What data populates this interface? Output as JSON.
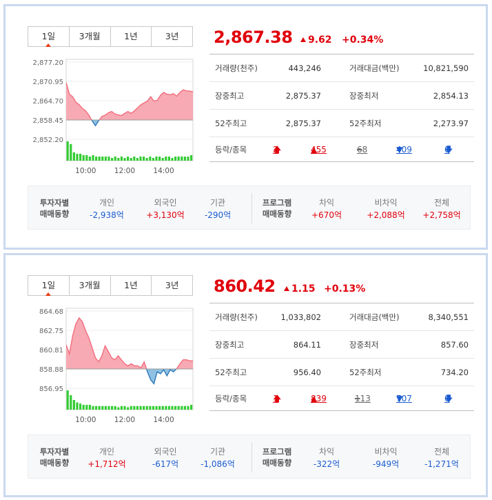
{
  "panels": [
    {
      "tabs": [
        "1일",
        "3개월",
        "1년",
        "3년"
      ],
      "active_tab": 0,
      "price": "2,867.38",
      "change": "9.62",
      "change_pct": "+0.34%",
      "stats": {
        "volume_label": "거래량(천주)",
        "volume": "443,246",
        "amount_label": "거래대금(백만)",
        "amount": "10,821,590",
        "day_high_label": "장중최고",
        "day_high": "2,875.37",
        "day_low_label": "장중최저",
        "day_low": "2,854.13",
        "w52_high_label": "52주최고",
        "w52_high": "2,875.37",
        "w52_low_label": "52주최저",
        "w52_low": "2,273.97"
      },
      "updown": {
        "label": "등락/종목",
        "upper_limit": "2",
        "rise": "455",
        "flat": "68",
        "fall": "409",
        "lower_limit": "0"
      },
      "investor": {
        "title_line1": "투자자별",
        "title_line2": "매매동향",
        "items": [
          {
            "name": "개인",
            "value": "-2,938억",
            "sign": "neg"
          },
          {
            "name": "외국인",
            "value": "+3,130억",
            "sign": "pos"
          },
          {
            "name": "기관",
            "value": "-290억",
            "sign": "neg"
          }
        ]
      },
      "program": {
        "title_line1": "프로그램",
        "title_line2": "매매동향",
        "items": [
          {
            "name": "차익",
            "value": "+670억",
            "sign": "pos"
          },
          {
            "name": "비차익",
            "value": "+2,088억",
            "sign": "pos"
          },
          {
            "name": "전체",
            "value": "+2,758억",
            "sign": "pos"
          }
        ]
      },
      "chart_data": {
        "type": "area",
        "y_ticks": [
          "2,877.20",
          "2,870.95",
          "2,864.70",
          "2,858.45",
          "2,852.20"
        ],
        "x_ticks": [
          "10:00",
          "12:00",
          "14:00"
        ],
        "ylim": [
          2852.2,
          2877.2
        ],
        "baseline": 2858.45,
        "x": [
          0,
          10,
          20,
          30,
          40,
          50,
          60,
          70,
          80,
          90,
          100,
          110,
          120,
          130,
          140,
          150,
          160,
          170,
          180,
          190,
          200,
          210,
          220,
          230,
          240,
          250,
          260,
          270,
          280,
          290,
          300,
          310,
          320,
          330,
          340,
          350,
          360,
          370,
          380,
          390
        ],
        "values": [
          2870.6,
          2866.8,
          2866.0,
          2864.2,
          2863.4,
          2862.2,
          2861.4,
          2860.0,
          2858.2,
          2856.6,
          2858.2,
          2859.6,
          2860.0,
          2860.8,
          2861.2,
          2860.4,
          2860.1,
          2859.9,
          2860.6,
          2861.2,
          2860.6,
          2861.4,
          2862.4,
          2863.4,
          2864.0,
          2864.6,
          2866.0,
          2864.6,
          2864.8,
          2866.4,
          2867.4,
          2866.8,
          2866.6,
          2867.0,
          2866.2,
          2867.4,
          2868.2,
          2867.9,
          2867.8,
          2867.6
        ],
        "volume": [
          14,
          12,
          6,
          5,
          5,
          4,
          4,
          3,
          4,
          3,
          3,
          3,
          3,
          3,
          2,
          3,
          2,
          3,
          2,
          3,
          2,
          3,
          2,
          3,
          3,
          2,
          3,
          2,
          3,
          3,
          2,
          3,
          3,
          2,
          3,
          3,
          3,
          3,
          3,
          4
        ],
        "colors": {
          "above": "#f26d7d",
          "above_fill": "#f7aab3",
          "below": "#2e78b8",
          "below_fill": "#8ec1e3",
          "volume": "#33cc33"
        }
      }
    },
    {
      "tabs": [
        "1일",
        "3개월",
        "1년",
        "3년"
      ],
      "active_tab": 0,
      "price": "860.42",
      "change": "1.15",
      "change_pct": "+0.13%",
      "stats": {
        "volume_label": "거래량(천주)",
        "volume": "1,033,802",
        "amount_label": "거래대금(백만)",
        "amount": "8,340,551",
        "day_high_label": "장중최고",
        "day_high": "864.11",
        "day_low_label": "장중최저",
        "day_low": "857.60",
        "w52_high_label": "52주최고",
        "w52_high": "956.40",
        "w52_low_label": "52주최저",
        "w52_low": "734.20"
      },
      "updown": {
        "label": "등락/종목",
        "upper_limit": "1",
        "rise": "839",
        "flat": "113",
        "fall": "707",
        "lower_limit": "0"
      },
      "investor": {
        "title_line1": "투자자별",
        "title_line2": "매매동향",
        "items": [
          {
            "name": "개인",
            "value": "+1,712억",
            "sign": "pos"
          },
          {
            "name": "외국인",
            "value": "-617억",
            "sign": "neg"
          },
          {
            "name": "기관",
            "value": "-1,086억",
            "sign": "neg"
          }
        ]
      },
      "program": {
        "title_line1": "프로그램",
        "title_line2": "매매동향",
        "items": [
          {
            "name": "차익",
            "value": "-322억",
            "sign": "neg"
          },
          {
            "name": "비차익",
            "value": "-949억",
            "sign": "neg"
          },
          {
            "name": "전체",
            "value": "-1,271억",
            "sign": "neg"
          }
        ]
      },
      "chart_data": {
        "type": "area",
        "y_ticks": [
          "864.68",
          "862.75",
          "860.81",
          "858.88",
          "856.95"
        ],
        "x_ticks": [
          "10:00",
          "12:00",
          "14:00"
        ],
        "ylim": [
          856.95,
          864.68
        ],
        "baseline": 858.88,
        "x": [
          0,
          10,
          20,
          30,
          40,
          50,
          60,
          70,
          80,
          90,
          100,
          110,
          120,
          130,
          140,
          150,
          160,
          170,
          180,
          190,
          200,
          210,
          220,
          230,
          240,
          250,
          260,
          270,
          280,
          290,
          300,
          310,
          320,
          330,
          340,
          350,
          360,
          370,
          380,
          390
        ],
        "values": [
          861.3,
          860.4,
          862.2,
          863.4,
          864.0,
          863.6,
          862.7,
          862.0,
          861.0,
          860.0,
          859.6,
          860.2,
          861.2,
          860.6,
          860.0,
          859.8,
          860.2,
          859.8,
          859.4,
          859.2,
          859.4,
          859.2,
          859.2,
          859.0,
          859.6,
          858.6,
          857.8,
          857.4,
          858.6,
          858.4,
          858.8,
          858.2,
          858.8,
          858.6,
          858.9,
          859.4,
          859.8,
          859.8,
          859.7,
          859.7
        ],
        "volume": [
          16,
          12,
          8,
          6,
          5,
          4,
          4,
          4,
          3,
          3,
          3,
          3,
          3,
          3,
          3,
          3,
          2,
          3,
          3,
          2,
          3,
          3,
          3,
          3,
          3,
          3,
          3,
          3,
          3,
          3,
          3,
          3,
          3,
          3,
          3,
          3,
          3,
          3,
          3,
          4
        ],
        "colors": {
          "above": "#f26d7d",
          "above_fill": "#f7aab3",
          "below": "#2e78b8",
          "below_fill": "#8ec1e3",
          "volume": "#33cc33"
        }
      }
    }
  ]
}
